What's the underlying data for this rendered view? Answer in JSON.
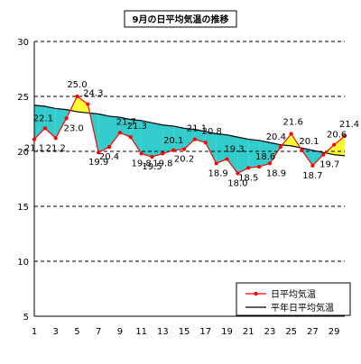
{
  "chart_data": {
    "type": "line",
    "title": "9月の日平均気温の推移",
    "xlabel": "",
    "ylabel": "",
    "x": [
      1,
      2,
      3,
      4,
      5,
      6,
      7,
      8,
      9,
      10,
      11,
      12,
      13,
      14,
      15,
      16,
      17,
      18,
      19,
      20,
      21,
      22,
      23,
      24,
      25,
      26,
      27,
      28,
      29,
      30
    ],
    "xticks": [
      1,
      3,
      5,
      7,
      9,
      11,
      13,
      15,
      17,
      19,
      21,
      23,
      25,
      27,
      29
    ],
    "ylim": [
      5,
      30
    ],
    "yticks": [
      5,
      10,
      15,
      20,
      25,
      30
    ],
    "grid": "horizontal-dashed",
    "legend_position": "bottom-right",
    "series": [
      {
        "name": "日平均気温",
        "values": [
          21.1,
          22.1,
          21.2,
          23.0,
          25.0,
          24.3,
          19.9,
          20.4,
          21.7,
          21.3,
          19.8,
          19.5,
          19.8,
          20.1,
          20.2,
          21.1,
          20.8,
          18.9,
          19.3,
          18.0,
          18.5,
          18.6,
          18.9,
          20.4,
          21.6,
          20.1,
          18.7,
          19.7,
          20.6,
          21.4
        ],
        "color": "#ff0000",
        "labels": [
          "21.1",
          "22.1",
          "21.2",
          "23.0",
          "25.0",
          "24.3",
          "19.9",
          "20.4",
          "21.7",
          "21.3",
          "19.8",
          "19.5",
          "19.8",
          "20.1",
          "20.2",
          "21.1",
          "20.8",
          "18.9",
          "19.3",
          "18.0",
          "18.5",
          "18.6",
          "18.9",
          "20.4",
          "21.6",
          "20.1",
          "18.7",
          "19.7",
          "20.6",
          "21.4"
        ]
      },
      {
        "name": "平年日平均気温",
        "values": [
          24.2,
          24.1,
          23.9,
          23.8,
          23.6,
          23.5,
          23.4,
          23.2,
          23.1,
          22.9,
          22.8,
          22.6,
          22.4,
          22.3,
          22.1,
          22.0,
          21.8,
          21.6,
          21.5,
          21.3,
          21.1,
          21.0,
          20.8,
          20.6,
          20.5,
          20.3,
          20.1,
          19.9,
          19.7,
          19.6
        ],
        "color": "#000000"
      }
    ],
    "fill_above_color": "#ffff33",
    "fill_below_color": "#33cccc"
  }
}
